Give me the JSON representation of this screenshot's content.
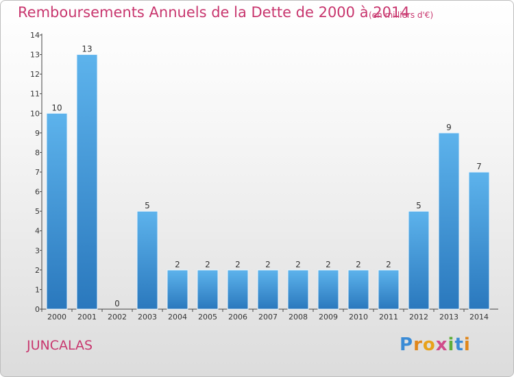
{
  "chart_data": {
    "type": "bar",
    "title": "Remboursements Annuels de la Dette de 2000 à 2014",
    "subtitle": "(en milliers d'€)",
    "categories": [
      "2000",
      "2001",
      "2002",
      "2003",
      "2004",
      "2005",
      "2006",
      "2007",
      "2008",
      "2009",
      "2010",
      "2011",
      "2012",
      "2013",
      "2014"
    ],
    "values": [
      10,
      13,
      0,
      5,
      2,
      2,
      2,
      2,
      2,
      2,
      2,
      2,
      5,
      9,
      7
    ],
    "ylim": [
      0,
      14
    ],
    "yticks": [
      0,
      1,
      2,
      3,
      4,
      5,
      6,
      7,
      8,
      9,
      10,
      11,
      12,
      13,
      14
    ],
    "xlabel": "",
    "ylabel": "",
    "bar_color": "#3d96d8",
    "grid": false
  },
  "footer": {
    "commune": "JUNCALAS",
    "brand": "Proxiti"
  }
}
